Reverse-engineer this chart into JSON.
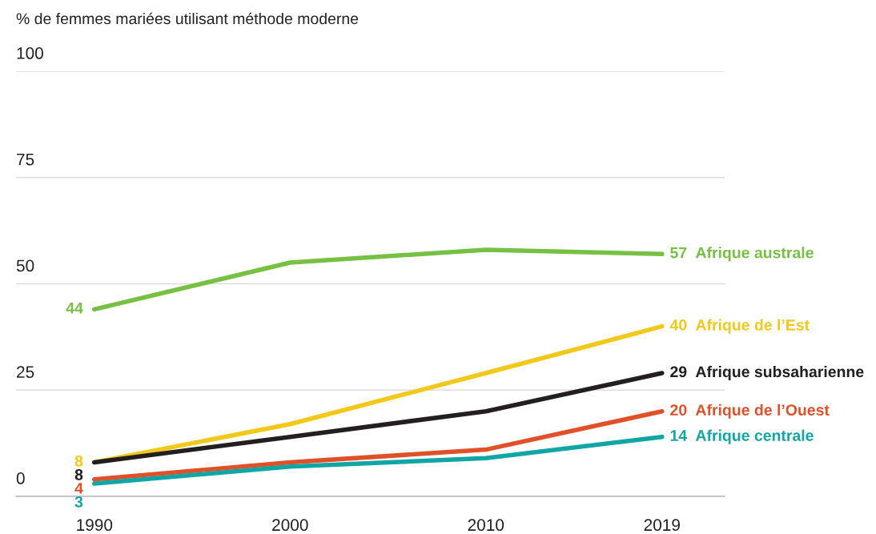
{
  "chart_data": {
    "type": "line",
    "ylabel": "% de femmes mariées utilisant méthode moderne",
    "x": [
      1990,
      2000,
      2010,
      2019
    ],
    "xlim": [
      1986,
      2022.2
    ],
    "xticks": [
      1990,
      2000,
      2010,
      2019
    ],
    "ylim": [
      0,
      100
    ],
    "yticks": [
      0,
      25,
      50,
      75,
      100
    ],
    "grid": "y",
    "legend": false,
    "marker": "none",
    "line_style": "solid",
    "series": [
      {
        "name": "Afrique australe",
        "color": "#76c043",
        "values": [
          44,
          55,
          58,
          57
        ],
        "value_labels": [
          "44",
          null,
          null,
          "57"
        ]
      },
      {
        "name": "Afrique de l’Est",
        "color": "#f2c81a",
        "values": [
          8,
          17,
          29,
          40
        ],
        "value_labels": [
          "8",
          null,
          null,
          "40"
        ]
      },
      {
        "name": "Afrique subsaharienne",
        "color": "#231f20",
        "values": [
          8,
          14,
          20,
          29
        ],
        "value_labels": [
          "8",
          null,
          null,
          "29"
        ]
      },
      {
        "name": "Afrique de l’Ouest",
        "color": "#e0512a",
        "values": [
          4,
          8,
          11,
          20
        ],
        "value_labels": [
          "4",
          null,
          null,
          "20"
        ]
      },
      {
        "name": "Afrique centrale",
        "color": "#12a5a5",
        "values": [
          3,
          7,
          9,
          14
        ],
        "value_labels": [
          "3",
          null,
          null,
          "14"
        ]
      }
    ]
  }
}
